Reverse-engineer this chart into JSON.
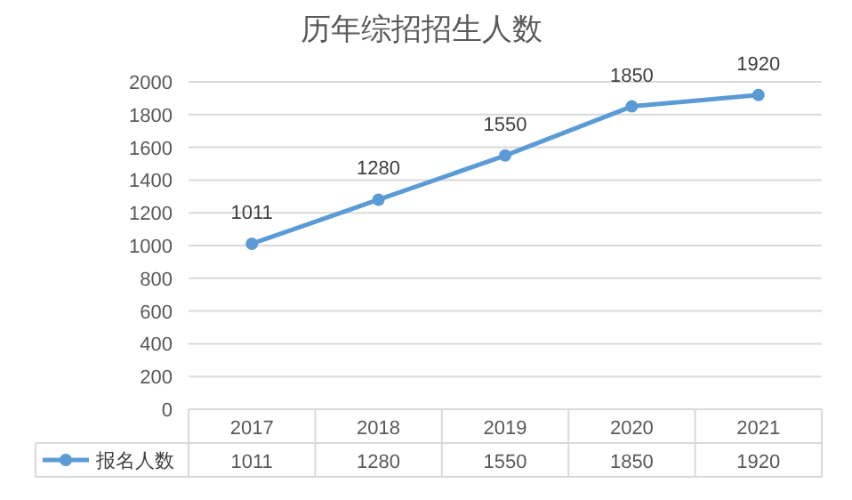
{
  "chart_data": {
    "type": "line",
    "title": "历年综招招生人数",
    "categories": [
      "2017",
      "2018",
      "2019",
      "2020",
      "2021"
    ],
    "series": [
      {
        "name": "报名人数",
        "color": "#5b9bd5",
        "values": [
          1011,
          1280,
          1550,
          1850,
          1920
        ]
      }
    ],
    "annotations": [
      "1011",
      "1280",
      "1550",
      "1850",
      "1920"
    ],
    "ylim": [
      0,
      2000
    ],
    "yticks": [
      0,
      200,
      400,
      600,
      800,
      1000,
      1200,
      1400,
      1600,
      1800,
      2000
    ],
    "grid": "y",
    "data_labels": true,
    "marker": "circle",
    "line_style": "solid",
    "legend": "bottom"
  }
}
